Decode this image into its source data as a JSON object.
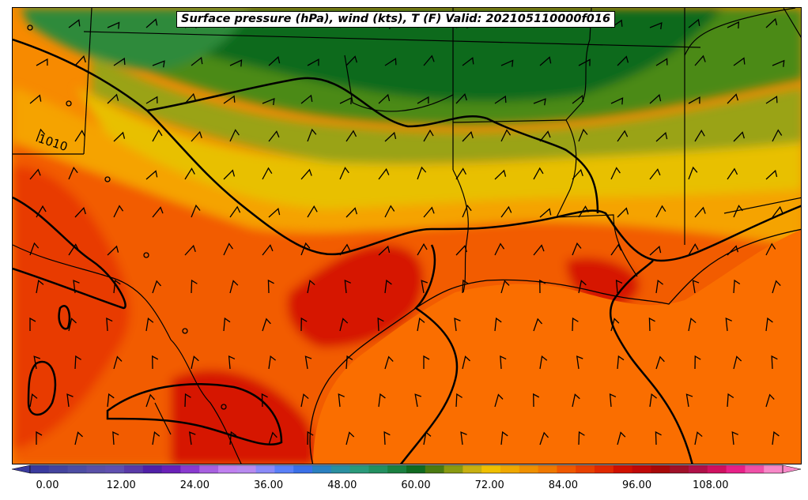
{
  "map": {
    "title": "Surface pressure (hPa), wind (kts), T (F) Valid: 202105110000f016",
    "isobar_label": "1010",
    "colors": {
      "green_dark": "#0a6b1c",
      "green_mid": "#2e8a3a",
      "green_olive": "#4b8a14",
      "olive": "#9aa314",
      "yellow": "#e8c000",
      "orange_light": "#f5a300",
      "orange": "#f78a00",
      "orange_deep": "#f25c00",
      "red_orange": "#e83a00",
      "red": "#d61200",
      "gulf_orange": "#fa6e00",
      "isobar": "#000000"
    }
  },
  "colorbar": {
    "ticks": [
      "0.00",
      "12.00",
      "24.00",
      "36.00",
      "48.00",
      "60.00",
      "72.00",
      "84.00",
      "96.00",
      "108.00"
    ],
    "colors": [
      "#3a3a9e",
      "#44449e",
      "#4d4da3",
      "#5a50a8",
      "#6050b0",
      "#5a3aa8",
      "#5020a8",
      "#6a20b8",
      "#8a3ad0",
      "#a860e0",
      "#c080f0",
      "#b88af0",
      "#8a8af8",
      "#5a80f8",
      "#3a70e8",
      "#2a80c0",
      "#2a90a0",
      "#2a9a7a",
      "#239060",
      "#1a8040",
      "#106a20",
      "#4a7a10",
      "#8a9a10",
      "#c8b010",
      "#f0c000",
      "#f0a800",
      "#f09000",
      "#f07800",
      "#f05800",
      "#e84000",
      "#e02800",
      "#d01000",
      "#c00808",
      "#a80808",
      "#a01028",
      "#b01048",
      "#d01060",
      "#e82088",
      "#f050a8",
      "#f888c8"
    ]
  }
}
